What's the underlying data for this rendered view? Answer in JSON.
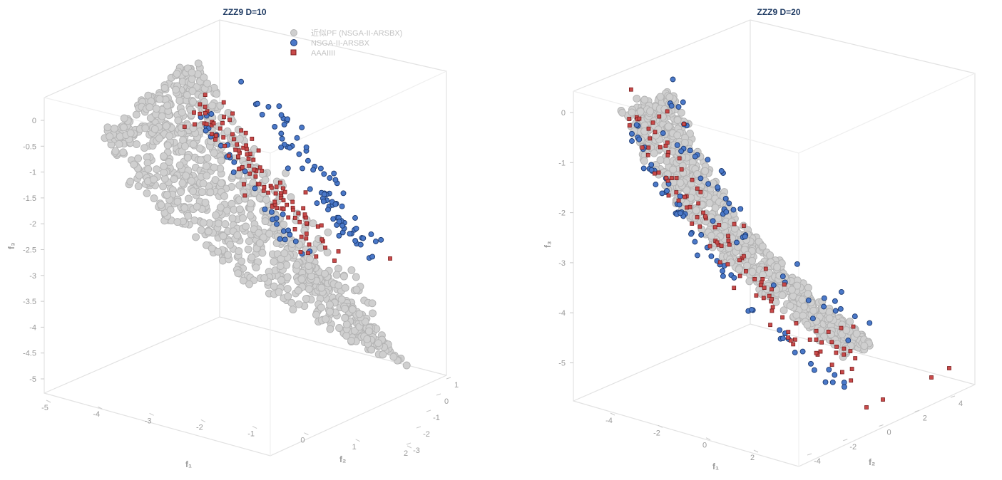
{
  "colors": {
    "approx_pf": "#cfcfcf",
    "approx_pf_stroke": "#b3b3b3",
    "nsga": "#4a78c8",
    "nsga_stroke": "#1d3b72",
    "aaa": "#c94a4a",
    "aaa_stroke": "#7a1f1f"
  },
  "chart_data": [
    {
      "type": "scatter",
      "title": "ZZZ9 D=10",
      "xlabel": "f₁",
      "ylabel": "f₂",
      "zlabel": "f₃",
      "xticks": [
        "-5",
        "-4",
        "-3",
        "-2",
        "-1",
        "0",
        "1",
        "2"
      ],
      "yticks": [
        "-3",
        "-2",
        "-1",
        "0",
        "1"
      ],
      "zticks": [
        "0",
        "-0.5",
        "-1",
        "-1.5",
        "-2",
        "-2.5",
        "-3",
        "-3.5",
        "-4",
        "-4.5",
        "-5"
      ],
      "zlim": [
        -5.2,
        0.4
      ],
      "legend_position": "top-right",
      "series": [
        {
          "name": "近似PF (NSGA-II-ARSBX)",
          "marker": "circle",
          "count": 900
        },
        {
          "name": "NSGA-II-ARSBX",
          "marker": "circle",
          "count": 110
        },
        {
          "name": "AAAIIII",
          "marker": "square",
          "count": 110
        }
      ]
    },
    {
      "type": "scatter",
      "title": "ZZZ9 D=20",
      "xlabel": "f₁",
      "ylabel": "f₂",
      "zlabel": "f₃",
      "xticks": [
        "-4",
        "-2",
        "0",
        "2"
      ],
      "yticks": [
        "-4",
        "-2",
        "0",
        "2",
        "4"
      ],
      "zticks": [
        "0",
        "-1",
        "-2",
        "-3",
        "-4",
        "-5"
      ],
      "zlim": [
        -5.7,
        0.3
      ],
      "series": [
        {
          "name": "近似PF (NSGA-II-ARSBX)",
          "marker": "circle",
          "count": 900
        },
        {
          "name": "NSGA-II-ARSBX",
          "marker": "circle",
          "count": 110
        },
        {
          "name": "AAAIIII",
          "marker": "square",
          "count": 110
        }
      ]
    }
  ]
}
